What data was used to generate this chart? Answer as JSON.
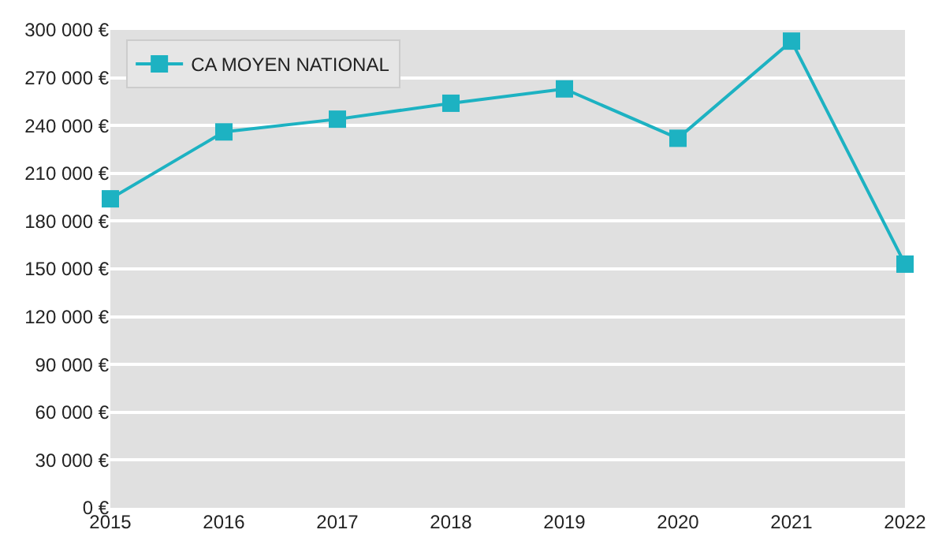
{
  "chart_data": {
    "type": "line",
    "x": [
      2015,
      2016,
      2017,
      2018,
      2019,
      2020,
      2021,
      2022
    ],
    "series": [
      {
        "name": "CA MOYEN NATIONAL",
        "color": "#1db2c2",
        "values": [
          194000,
          236000,
          244000,
          254000,
          263000,
          232000,
          293000,
          153000
        ]
      }
    ],
    "xlim": [
      2015,
      2022
    ],
    "xticks": [
      2015,
      2016,
      2017,
      2018,
      2019,
      2020,
      2021,
      2022
    ],
    "ylim": [
      0,
      300000
    ],
    "yticks": [
      {
        "value": 0,
        "label": "0 €"
      },
      {
        "value": 30000,
        "label": "30 000 €"
      },
      {
        "value": 60000,
        "label": "60 000 €"
      },
      {
        "value": 90000,
        "label": "90 000 €"
      },
      {
        "value": 120000,
        "label": "120 000 €"
      },
      {
        "value": 150000,
        "label": "150 000 €"
      },
      {
        "value": 180000,
        "label": "180 000 €"
      },
      {
        "value": 210000,
        "label": "210 000 €"
      },
      {
        "value": 240000,
        "label": "240 000 €"
      },
      {
        "value": 270000,
        "label": "270 000 €"
      },
      {
        "value": 300000,
        "label": "300 000 €"
      }
    ],
    "grid": "y",
    "legend": "top left",
    "marker": "square",
    "line_style": "solid"
  }
}
